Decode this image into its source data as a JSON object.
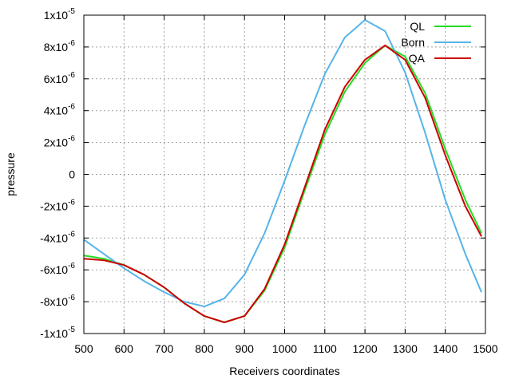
{
  "chart_data": {
    "type": "line",
    "xlabel": "Receivers coordinates",
    "ylabel": "pressure",
    "xlim": [
      500,
      1500
    ],
    "ylim": [
      -1e-05,
      1e-05
    ],
    "grid": true,
    "legend_position": "top-right",
    "x_ticks": [
      {
        "v": 500,
        "label": "500"
      },
      {
        "v": 600,
        "label": "600"
      },
      {
        "v": 700,
        "label": "700"
      },
      {
        "v": 800,
        "label": "800"
      },
      {
        "v": 900,
        "label": "900"
      },
      {
        "v": 1000,
        "label": "1000"
      },
      {
        "v": 1100,
        "label": "1100"
      },
      {
        "v": 1200,
        "label": "1200"
      },
      {
        "v": 1300,
        "label": "1300"
      },
      {
        "v": 1400,
        "label": "1400"
      },
      {
        "v": 1500,
        "label": "1500"
      }
    ],
    "y_ticks": [
      {
        "v": 1e-05,
        "mant": "1x10",
        "exp": "-5"
      },
      {
        "v": 8e-06,
        "mant": "8x10",
        "exp": "-6"
      },
      {
        "v": 6e-06,
        "mant": "6x10",
        "exp": "-6"
      },
      {
        "v": 4e-06,
        "mant": "4x10",
        "exp": "-6"
      },
      {
        "v": 2e-06,
        "mant": "2x10",
        "exp": "-6"
      },
      {
        "v": 0,
        "mant": "0",
        "exp": ""
      },
      {
        "v": -2e-06,
        "mant": "-2x10",
        "exp": "-6"
      },
      {
        "v": -4e-06,
        "mant": "-4x10",
        "exp": "-6"
      },
      {
        "v": -6e-06,
        "mant": "-6x10",
        "exp": "-6"
      },
      {
        "v": -8e-06,
        "mant": "-8x10",
        "exp": "-6"
      },
      {
        "v": -1e-05,
        "mant": "-1x10",
        "exp": "-5"
      }
    ],
    "series": [
      {
        "name": "QL",
        "color": "#22dd22",
        "x": [
          500,
          550,
          600,
          650,
          700,
          750,
          800,
          850,
          900,
          950,
          1000,
          1050,
          1100,
          1150,
          1200,
          1250,
          1300,
          1350,
          1400,
          1450,
          1490
        ],
        "y": [
          -5.1e-06,
          -5.3e-06,
          -5.7e-06,
          -6.3e-06,
          -7.1e-06,
          -8.1e-06,
          -8.9e-06,
          -9.3e-06,
          -8.9e-06,
          -7.3e-06,
          -4.6e-06,
          -1e-06,
          2.5e-06,
          5.2e-06,
          7e-06,
          8.1e-06,
          7.4e-06,
          5.1e-06,
          1.6e-06,
          -1.6e-06,
          -3.7e-06
        ]
      },
      {
        "name": "Born",
        "color": "#56b4e9",
        "x": [
          500,
          550,
          600,
          650,
          700,
          750,
          800,
          850,
          900,
          950,
          1000,
          1050,
          1100,
          1150,
          1200,
          1250,
          1300,
          1350,
          1400,
          1450,
          1490
        ],
        "y": [
          -4.1e-06,
          -5e-06,
          -5.9e-06,
          -6.7e-06,
          -7.4e-06,
          -8e-06,
          -8.3e-06,
          -7.8e-06,
          -6.3e-06,
          -3.7e-06,
          -4e-07,
          3.1e-06,
          6.3e-06,
          8.6e-06,
          9.7e-06,
          9e-06,
          6.4e-06,
          2.6e-06,
          -1.6e-06,
          -5e-06,
          -7.4e-06
        ]
      },
      {
        "name": "QA",
        "color": "#cc0000",
        "x": [
          500,
          550,
          600,
          650,
          700,
          750,
          800,
          850,
          900,
          950,
          1000,
          1050,
          1100,
          1150,
          1200,
          1250,
          1300,
          1350,
          1400,
          1450,
          1490
        ],
        "y": [
          -5.3e-06,
          -5.4e-06,
          -5.7e-06,
          -6.3e-06,
          -7.1e-06,
          -8.1e-06,
          -8.9e-06,
          -9.3e-06,
          -8.9e-06,
          -7.2e-06,
          -4.4e-06,
          -8e-07,
          2.8e-06,
          5.5e-06,
          7.2e-06,
          8.1e-06,
          7.2e-06,
          4.8e-06,
          1.2e-06,
          -2e-06,
          -3.9e-06
        ]
      }
    ]
  }
}
